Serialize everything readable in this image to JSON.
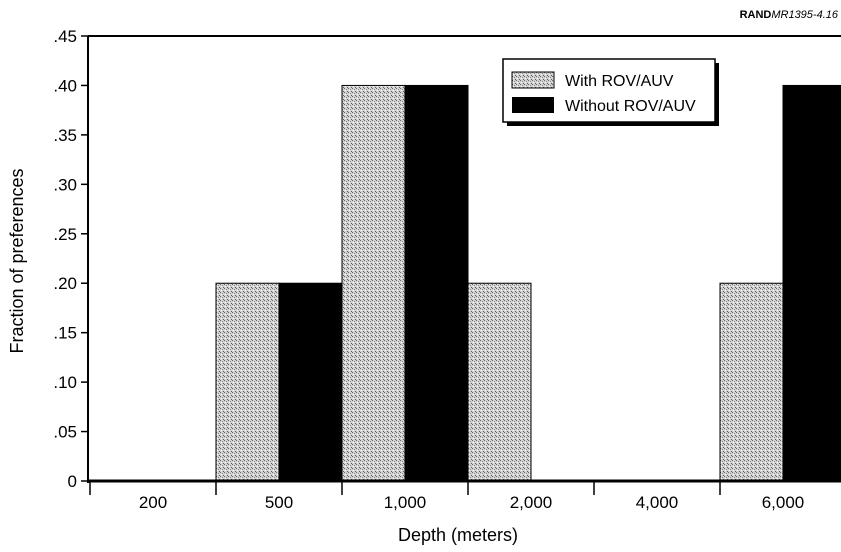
{
  "source_note": {
    "bold": "RAND",
    "italic": "MR1395-4.16"
  },
  "chart_data": {
    "type": "bar",
    "categories": [
      "200",
      "500",
      "1,000",
      "2,000",
      "4,000",
      "6,000"
    ],
    "series": [
      {
        "name": "With ROV/AUV",
        "values": [
          0,
          0.2,
          0.4,
          0.2,
          0,
          0.2
        ],
        "fill": "stipple-gray"
      },
      {
        "name": "Without ROV/AUV",
        "values": [
          0,
          0.2,
          0.4,
          0,
          0,
          0.4
        ],
        "fill": "#000000"
      }
    ],
    "xlabel": "Depth (meters)",
    "ylabel": "Fraction of preferences",
    "ylim": [
      0,
      0.45
    ],
    "yticks": [
      0,
      0.05,
      0.1,
      0.15,
      0.2,
      0.25,
      0.3,
      0.35,
      0.4,
      0.45
    ],
    "ytick_labels": [
      "0",
      ".05",
      ".10",
      ".15",
      ".20",
      ".25",
      ".30",
      ".35",
      ".40",
      ".45"
    ],
    "grid": false,
    "legend_position": "top-right"
  }
}
